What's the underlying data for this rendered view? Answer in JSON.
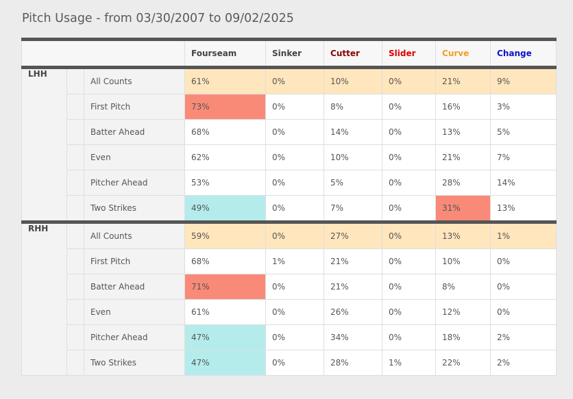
{
  "title": "Pitch Usage - from 03/30/2007 to 09/02/2025",
  "columns": [
    {
      "label": "Fourseam",
      "color": "#444444"
    },
    {
      "label": "Sinker",
      "color": "#444444"
    },
    {
      "label": "Cutter",
      "color": "#8b0000"
    },
    {
      "label": "Slider",
      "color": "#dd0000"
    },
    {
      "label": "Curve",
      "color": "#f0a020"
    },
    {
      "label": "Change",
      "color": "#1010cc"
    }
  ],
  "groups": [
    {
      "label": "LHH",
      "rows": [
        {
          "count": "All Counts",
          "values": [
            "61%",
            "0%",
            "10%",
            "0%",
            "21%",
            "9%"
          ],
          "highlights": [
            "",
            "",
            "",
            "",
            "",
            ""
          ]
        },
        {
          "count": "First Pitch",
          "values": [
            "73%",
            "0%",
            "8%",
            "0%",
            "16%",
            "3%"
          ],
          "highlights": [
            "hi",
            "",
            "",
            "",
            "",
            ""
          ]
        },
        {
          "count": "Batter Ahead",
          "values": [
            "68%",
            "0%",
            "14%",
            "0%",
            "13%",
            "5%"
          ],
          "highlights": [
            "",
            "",
            "",
            "",
            "",
            ""
          ]
        },
        {
          "count": "Even",
          "values": [
            "62%",
            "0%",
            "10%",
            "0%",
            "21%",
            "7%"
          ],
          "highlights": [
            "",
            "",
            "",
            "",
            "",
            ""
          ]
        },
        {
          "count": "Pitcher Ahead",
          "values": [
            "53%",
            "0%",
            "5%",
            "0%",
            "28%",
            "14%"
          ],
          "highlights": [
            "",
            "",
            "",
            "",
            "",
            ""
          ]
        },
        {
          "count": "Two Strikes",
          "values": [
            "49%",
            "0%",
            "7%",
            "0%",
            "31%",
            "13%"
          ],
          "highlights": [
            "lo",
            "",
            "",
            "",
            "hi",
            ""
          ]
        }
      ]
    },
    {
      "label": "RHH",
      "rows": [
        {
          "count": "All Counts",
          "values": [
            "59%",
            "0%",
            "27%",
            "0%",
            "13%",
            "1%"
          ],
          "highlights": [
            "",
            "",
            "",
            "",
            "",
            ""
          ]
        },
        {
          "count": "First Pitch",
          "values": [
            "68%",
            "1%",
            "21%",
            "0%",
            "10%",
            "0%"
          ],
          "highlights": [
            "",
            "",
            "",
            "",
            "",
            ""
          ]
        },
        {
          "count": "Batter Ahead",
          "values": [
            "71%",
            "0%",
            "21%",
            "0%",
            "8%",
            "0%"
          ],
          "highlights": [
            "hi",
            "",
            "",
            "",
            "",
            ""
          ]
        },
        {
          "count": "Even",
          "values": [
            "61%",
            "0%",
            "26%",
            "0%",
            "12%",
            "0%"
          ],
          "highlights": [
            "",
            "",
            "",
            "",
            "",
            ""
          ]
        },
        {
          "count": "Pitcher Ahead",
          "values": [
            "47%",
            "0%",
            "34%",
            "0%",
            "18%",
            "2%"
          ],
          "highlights": [
            "lo",
            "",
            "",
            "",
            "",
            ""
          ]
        },
        {
          "count": "Two Strikes",
          "values": [
            "47%",
            "0%",
            "28%",
            "1%",
            "22%",
            "2%"
          ],
          "highlights": [
            "lo",
            "",
            "",
            "",
            "",
            ""
          ]
        }
      ]
    }
  ]
}
